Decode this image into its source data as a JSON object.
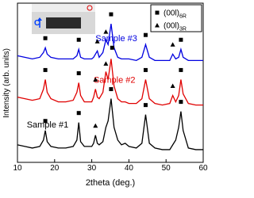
{
  "chart_data": {
    "type": "line",
    "x_label": "2theta (deg.)",
    "y_label": "Intensity (arb. units)",
    "xlim": [
      10,
      60
    ],
    "xticks": [
      10,
      20,
      30,
      40,
      50,
      60
    ],
    "ylim": [
      0,
      100
    ],
    "x": [
      10,
      12,
      14,
      16,
      17,
      17.5,
      18,
      19,
      21,
      23,
      25,
      26,
      26.5,
      27,
      28,
      30,
      30.5,
      31,
      31.5,
      32,
      33,
      33.8,
      34.4,
      35.2,
      36,
      37,
      38,
      39,
      40,
      42,
      43.5,
      44.5,
      45.5,
      47,
      49,
      51,
      51.8,
      52.6,
      53.4,
      54,
      54.6,
      56,
      58,
      60
    ],
    "series": [
      {
        "name": "Sample #1",
        "color": "#000000",
        "values": [
          11,
          10,
          9,
          10,
          14,
          20,
          13,
          10,
          9,
          9,
          10,
          14,
          25,
          13,
          10,
          10,
          12,
          17,
          12,
          11,
          13,
          22,
          26,
          40,
          22,
          14,
          11,
          12,
          10,
          9,
          12,
          30,
          12,
          9,
          8,
          8,
          11,
          14,
          22,
          32,
          20,
          9,
          8,
          8
        ]
      },
      {
        "name": "Sample #2",
        "color": "#e00000",
        "values": [
          41,
          40,
          39,
          40,
          46,
          52,
          44,
          40,
          38,
          38,
          39,
          44,
          50,
          42,
          38,
          38,
          41,
          46,
          41,
          40,
          44,
          57,
          52,
          65,
          48,
          40,
          38,
          38,
          37,
          37,
          40,
          52,
          40,
          37,
          36,
          37,
          42,
          38,
          42,
          52,
          43,
          37,
          36,
          36
        ]
      },
      {
        "name": "Sample #3",
        "color": "#0000e0",
        "values": [
          67,
          66,
          65,
          66,
          69,
          72,
          68,
          66,
          65,
          65,
          65,
          67,
          71,
          66,
          65,
          65,
          66,
          68,
          70,
          66,
          69,
          77,
          74,
          87,
          72,
          66,
          65,
          65,
          65,
          64,
          66,
          74,
          66,
          64,
          64,
          64,
          68,
          65,
          66,
          71,
          66,
          64,
          64,
          64
        ]
      }
    ],
    "peak_markers": [
      {
        "shape": "square",
        "label": "(00l)",
        "label_sub": "6R",
        "x": [
          17.5,
          26.5,
          35.2,
          44.5,
          54,
          17.5,
          26.5,
          35.5,
          44.5,
          54,
          17.5,
          26.5,
          35.2,
          44.5,
          54
        ],
        "y": [
          26,
          31,
          46,
          36,
          38,
          58,
          56,
          72,
          58,
          58,
          78,
          77,
          93,
          80,
          77
        ]
      },
      {
        "shape": "triangle",
        "label": "(00l)",
        "label_sub": "3R",
        "x": [
          31,
          31,
          33.8,
          51.8,
          31.5,
          33.8,
          51.8
        ],
        "y": [
          23,
          52,
          62,
          48,
          76,
          82,
          74
        ]
      }
    ],
    "inset": {
      "label": "C"
    }
  }
}
